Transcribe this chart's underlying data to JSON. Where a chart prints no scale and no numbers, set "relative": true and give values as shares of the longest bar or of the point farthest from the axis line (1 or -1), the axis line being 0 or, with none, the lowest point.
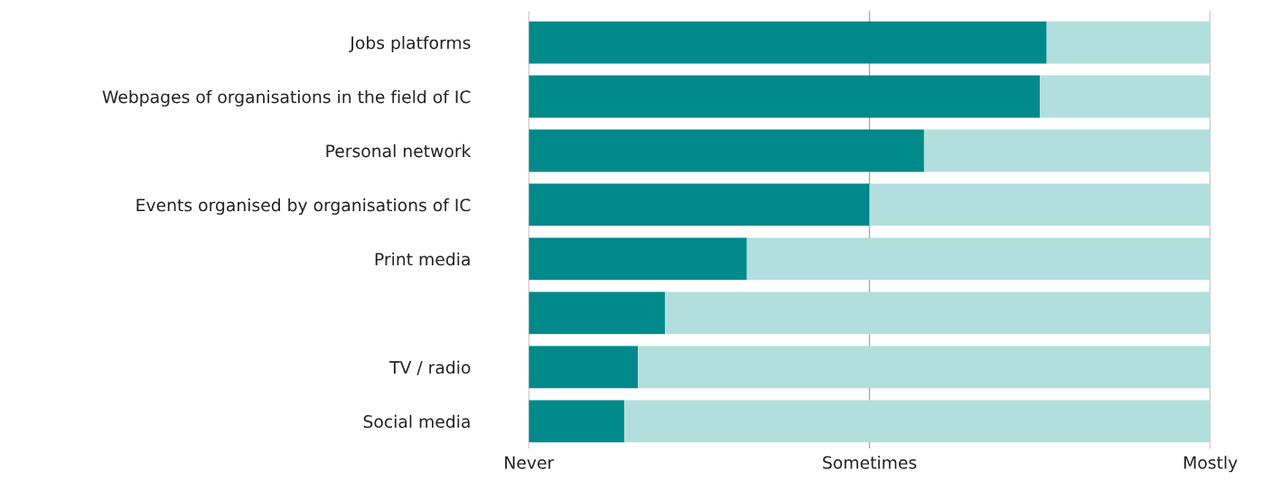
{
  "chart_data": {
    "type": "bar",
    "orientation": "horizontal",
    "stacked": true,
    "relative": true,
    "categories": [
      "Jobs platforms",
      "Webpages of organisations in the field of IC",
      "Personal network",
      "Events organised by organisations of IC",
      "Print media",
      null,
      "TV / radio",
      "Social media"
    ],
    "series": [
      {
        "color": "#00898a",
        "values": [
          0.76,
          0.75,
          0.58,
          0.5,
          0.32,
          0.2,
          0.16,
          0.14
        ]
      },
      {
        "color": "#b2dfdd",
        "values": [
          0.24,
          0.25,
          0.42,
          0.5,
          0.68,
          0.8,
          0.84,
          0.86
        ]
      }
    ],
    "ref_lines": [
      {
        "axis": "x",
        "value": 0,
        "label": "Never",
        "color": "#aaaaaa"
      },
      {
        "axis": "x",
        "value": 0.5,
        "label": "Sometimes",
        "color": "#aaaaaa"
      },
      {
        "axis": "x",
        "value": 1,
        "label": "Mostly",
        "color": "#aaaaaa"
      }
    ],
    "legend": false
  }
}
